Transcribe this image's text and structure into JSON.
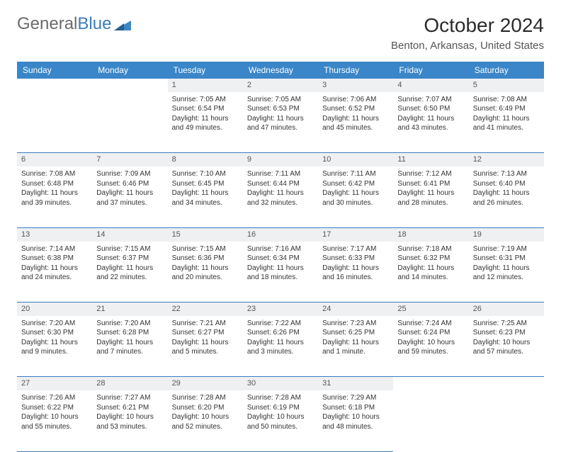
{
  "brand": {
    "word1": "General",
    "word2": "Blue",
    "logo_color": "#3a86c8"
  },
  "title": "October 2024",
  "location": "Benton, Arkansas, United States",
  "colors": {
    "header_bg": "#3a86c8",
    "daynum_bg": "#eef0f2",
    "rule": "#3a7cbf",
    "text": "#333333"
  },
  "weekdays": [
    "Sunday",
    "Monday",
    "Tuesday",
    "Wednesday",
    "Thursday",
    "Friday",
    "Saturday"
  ],
  "weeks": [
    {
      "nums": [
        "",
        "",
        "1",
        "2",
        "3",
        "4",
        "5"
      ],
      "cells": [
        null,
        null,
        {
          "sunrise": "Sunrise: 7:05 AM",
          "sunset": "Sunset: 6:54 PM",
          "daylight": "Daylight: 11 hours and 49 minutes."
        },
        {
          "sunrise": "Sunrise: 7:05 AM",
          "sunset": "Sunset: 6:53 PM",
          "daylight": "Daylight: 11 hours and 47 minutes."
        },
        {
          "sunrise": "Sunrise: 7:06 AM",
          "sunset": "Sunset: 6:52 PM",
          "daylight": "Daylight: 11 hours and 45 minutes."
        },
        {
          "sunrise": "Sunrise: 7:07 AM",
          "sunset": "Sunset: 6:50 PM",
          "daylight": "Daylight: 11 hours and 43 minutes."
        },
        {
          "sunrise": "Sunrise: 7:08 AM",
          "sunset": "Sunset: 6:49 PM",
          "daylight": "Daylight: 11 hours and 41 minutes."
        }
      ]
    },
    {
      "nums": [
        "6",
        "7",
        "8",
        "9",
        "10",
        "11",
        "12"
      ],
      "cells": [
        {
          "sunrise": "Sunrise: 7:08 AM",
          "sunset": "Sunset: 6:48 PM",
          "daylight": "Daylight: 11 hours and 39 minutes."
        },
        {
          "sunrise": "Sunrise: 7:09 AM",
          "sunset": "Sunset: 6:46 PM",
          "daylight": "Daylight: 11 hours and 37 minutes."
        },
        {
          "sunrise": "Sunrise: 7:10 AM",
          "sunset": "Sunset: 6:45 PM",
          "daylight": "Daylight: 11 hours and 34 minutes."
        },
        {
          "sunrise": "Sunrise: 7:11 AM",
          "sunset": "Sunset: 6:44 PM",
          "daylight": "Daylight: 11 hours and 32 minutes."
        },
        {
          "sunrise": "Sunrise: 7:11 AM",
          "sunset": "Sunset: 6:42 PM",
          "daylight": "Daylight: 11 hours and 30 minutes."
        },
        {
          "sunrise": "Sunrise: 7:12 AM",
          "sunset": "Sunset: 6:41 PM",
          "daylight": "Daylight: 11 hours and 28 minutes."
        },
        {
          "sunrise": "Sunrise: 7:13 AM",
          "sunset": "Sunset: 6:40 PM",
          "daylight": "Daylight: 11 hours and 26 minutes."
        }
      ]
    },
    {
      "nums": [
        "13",
        "14",
        "15",
        "16",
        "17",
        "18",
        "19"
      ],
      "cells": [
        {
          "sunrise": "Sunrise: 7:14 AM",
          "sunset": "Sunset: 6:38 PM",
          "daylight": "Daylight: 11 hours and 24 minutes."
        },
        {
          "sunrise": "Sunrise: 7:15 AM",
          "sunset": "Sunset: 6:37 PM",
          "daylight": "Daylight: 11 hours and 22 minutes."
        },
        {
          "sunrise": "Sunrise: 7:15 AM",
          "sunset": "Sunset: 6:36 PM",
          "daylight": "Daylight: 11 hours and 20 minutes."
        },
        {
          "sunrise": "Sunrise: 7:16 AM",
          "sunset": "Sunset: 6:34 PM",
          "daylight": "Daylight: 11 hours and 18 minutes."
        },
        {
          "sunrise": "Sunrise: 7:17 AM",
          "sunset": "Sunset: 6:33 PM",
          "daylight": "Daylight: 11 hours and 16 minutes."
        },
        {
          "sunrise": "Sunrise: 7:18 AM",
          "sunset": "Sunset: 6:32 PM",
          "daylight": "Daylight: 11 hours and 14 minutes."
        },
        {
          "sunrise": "Sunrise: 7:19 AM",
          "sunset": "Sunset: 6:31 PM",
          "daylight": "Daylight: 11 hours and 12 minutes."
        }
      ]
    },
    {
      "nums": [
        "20",
        "21",
        "22",
        "23",
        "24",
        "25",
        "26"
      ],
      "cells": [
        {
          "sunrise": "Sunrise: 7:20 AM",
          "sunset": "Sunset: 6:30 PM",
          "daylight": "Daylight: 11 hours and 9 minutes."
        },
        {
          "sunrise": "Sunrise: 7:20 AM",
          "sunset": "Sunset: 6:28 PM",
          "daylight": "Daylight: 11 hours and 7 minutes."
        },
        {
          "sunrise": "Sunrise: 7:21 AM",
          "sunset": "Sunset: 6:27 PM",
          "daylight": "Daylight: 11 hours and 5 minutes."
        },
        {
          "sunrise": "Sunrise: 7:22 AM",
          "sunset": "Sunset: 6:26 PM",
          "daylight": "Daylight: 11 hours and 3 minutes."
        },
        {
          "sunrise": "Sunrise: 7:23 AM",
          "sunset": "Sunset: 6:25 PM",
          "daylight": "Daylight: 11 hours and 1 minute."
        },
        {
          "sunrise": "Sunrise: 7:24 AM",
          "sunset": "Sunset: 6:24 PM",
          "daylight": "Daylight: 10 hours and 59 minutes."
        },
        {
          "sunrise": "Sunrise: 7:25 AM",
          "sunset": "Sunset: 6:23 PM",
          "daylight": "Daylight: 10 hours and 57 minutes."
        }
      ]
    },
    {
      "nums": [
        "27",
        "28",
        "29",
        "30",
        "31",
        "",
        ""
      ],
      "cells": [
        {
          "sunrise": "Sunrise: 7:26 AM",
          "sunset": "Sunset: 6:22 PM",
          "daylight": "Daylight: 10 hours and 55 minutes."
        },
        {
          "sunrise": "Sunrise: 7:27 AM",
          "sunset": "Sunset: 6:21 PM",
          "daylight": "Daylight: 10 hours and 53 minutes."
        },
        {
          "sunrise": "Sunrise: 7:28 AM",
          "sunset": "Sunset: 6:20 PM",
          "daylight": "Daylight: 10 hours and 52 minutes."
        },
        {
          "sunrise": "Sunrise: 7:28 AM",
          "sunset": "Sunset: 6:19 PM",
          "daylight": "Daylight: 10 hours and 50 minutes."
        },
        {
          "sunrise": "Sunrise: 7:29 AM",
          "sunset": "Sunset: 6:18 PM",
          "daylight": "Daylight: 10 hours and 48 minutes."
        },
        null,
        null
      ]
    }
  ]
}
